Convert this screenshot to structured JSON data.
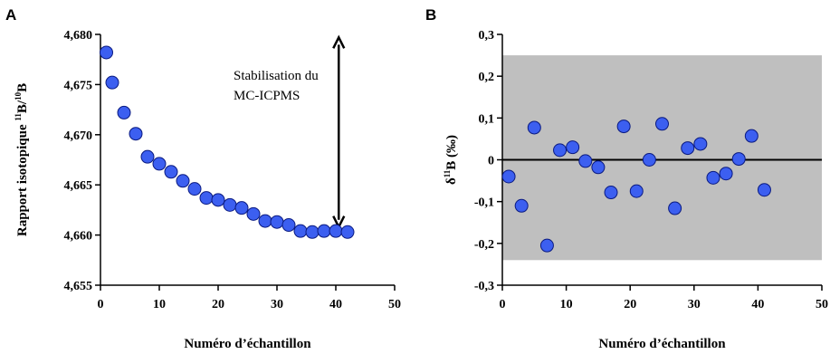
{
  "chart_data": [
    {
      "type": "scatter",
      "panel_label": "A",
      "xlabel": "Numéro d’échantillon",
      "ylabel_parts": [
        "Rapport isotopique ",
        "11",
        "B/",
        "10",
        "B"
      ],
      "xlim": [
        0,
        50
      ],
      "ylim": [
        4.655,
        4.68
      ],
      "xticks": [
        0,
        10,
        20,
        30,
        40,
        50
      ],
      "xtick_labels": [
        "0",
        "10",
        "20",
        "30",
        "40",
        "50"
      ],
      "yticks": [
        4.655,
        4.66,
        4.665,
        4.67,
        4.675,
        4.68
      ],
      "ytick_labels": [
        "4,655",
        "4,660",
        "4,665",
        "4,670",
        "4,675",
        "4,680"
      ],
      "annotation": [
        "Stabilisation du",
        "MC-ICPMS"
      ],
      "arrow": {
        "x": 40.5,
        "y_from": 4.6797,
        "y_to": 4.6608
      },
      "x": [
        1,
        2,
        4,
        6,
        8,
        10,
        12,
        14,
        16,
        18,
        20,
        22,
        24,
        26,
        28,
        30,
        32,
        34,
        36,
        38,
        40,
        42
      ],
      "y": [
        4.6782,
        4.6752,
        4.6722,
        4.6701,
        4.6678,
        4.6671,
        4.6663,
        4.6654,
        4.6646,
        4.6637,
        4.6635,
        4.663,
        4.6627,
        4.6621,
        4.6614,
        4.6613,
        4.661,
        4.6604,
        4.6603,
        4.6604,
        4.6604,
        4.6603
      ]
    },
    {
      "type": "scatter",
      "panel_label": "B",
      "xlabel": "Numéro d’échantillon",
      "ylabel_parts": [
        "δ",
        "11",
        "B (‰)"
      ],
      "xlim": [
        0,
        50
      ],
      "ylim": [
        -0.3,
        0.3
      ],
      "xticks": [
        0,
        10,
        20,
        30,
        40,
        50
      ],
      "xtick_labels": [
        "0",
        "10",
        "20",
        "30",
        "40",
        "50"
      ],
      "yticks": [
        -0.3,
        -0.2,
        -0.1,
        0,
        0.1,
        0.2,
        0.3
      ],
      "ytick_labels": [
        "-0,3",
        "-0,2",
        "-0,1",
        "0",
        "0,1",
        "0,2",
        "0,3"
      ],
      "shaded_band": [
        -0.24,
        0.25
      ],
      "band_color": "#bfbfbf",
      "reference_line": 0,
      "x": [
        1,
        3,
        5,
        7,
        9,
        11,
        13,
        15,
        17,
        19,
        21,
        23,
        25,
        27,
        29,
        31,
        33,
        35,
        37,
        39,
        41
      ],
      "y": [
        -0.04,
        -0.11,
        0.077,
        -0.205,
        0.023,
        0.03,
        -0.003,
        -0.018,
        -0.078,
        0.08,
        -0.075,
        0.0,
        0.086,
        -0.116,
        0.028,
        0.038,
        -0.043,
        -0.033,
        0.002,
        0.057,
        -0.072
      ]
    }
  ],
  "colors": {
    "marker_fill": "#3c5ff0",
    "marker_stroke": "#0a1a80"
  }
}
